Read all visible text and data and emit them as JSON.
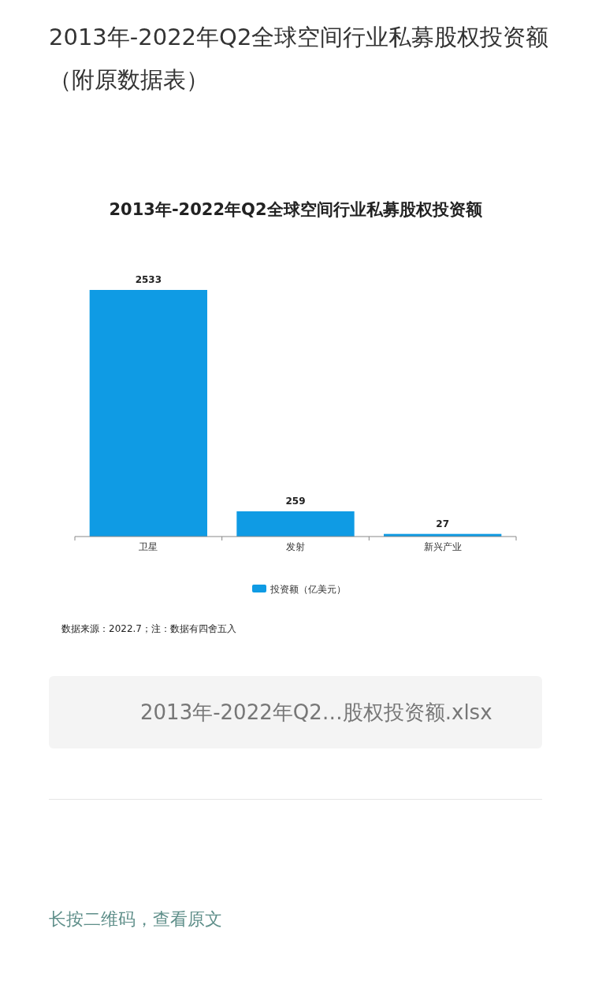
{
  "chart_data": {
    "type": "bar",
    "title": "2013年-2022年Q2全球空间行业私募股权投资额",
    "categories": [
      "卫星",
      "发射",
      "新兴产业"
    ],
    "series": [
      {
        "name": "投资额（亿美元）",
        "color": "#0f9be4",
        "values": [
          2533,
          259,
          27
        ]
      }
    ],
    "data_labels": true,
    "legend": "bottom",
    "annotations": [
      "2013年-2022年Q2全球空间行业私募股权投资额（附原数据表）",
      "数据来源：2022.7；注：数据有四舍五入",
      "2013年-2022年Q2…股权投资额.xlsx",
      "长按二维码，查看原文"
    ]
  }
}
